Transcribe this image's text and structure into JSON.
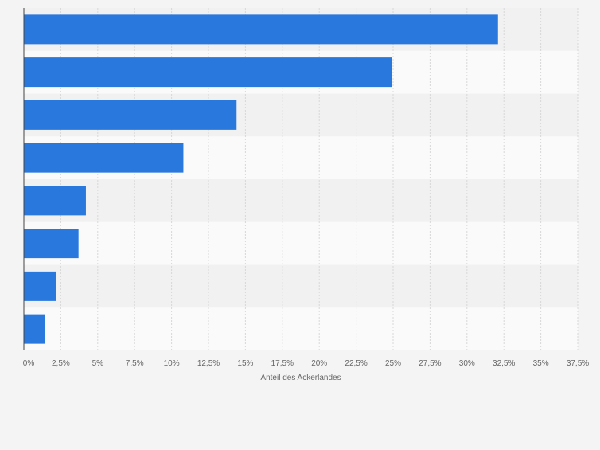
{
  "chart_data": {
    "type": "bar",
    "orientation": "horizontal",
    "title": "",
    "xlabel": "Anteil des Ackerlandes",
    "ylabel": "",
    "categories": [
      "",
      "",
      "",
      "",
      "",
      "",
      "",
      ""
    ],
    "values": [
      32.1,
      24.9,
      14.4,
      10.8,
      4.2,
      3.7,
      2.2,
      1.4
    ],
    "xlim": [
      0,
      37.5
    ],
    "xticks": [
      "0%",
      "2,5%",
      "5%",
      "7,5%",
      "10%",
      "12,5%",
      "15%",
      "17,5%",
      "20%",
      "22,5%",
      "25%",
      "27,5%",
      "30%",
      "32,5%",
      "35%",
      "37,5%"
    ],
    "grid": true,
    "legend": "none",
    "colors": {
      "bar": "#2878de",
      "band_dark": "#f1f1f1",
      "band_light": "#fafafa",
      "grid": "#d8d8d8",
      "axis": "#444444",
      "text": "#666666"
    }
  }
}
